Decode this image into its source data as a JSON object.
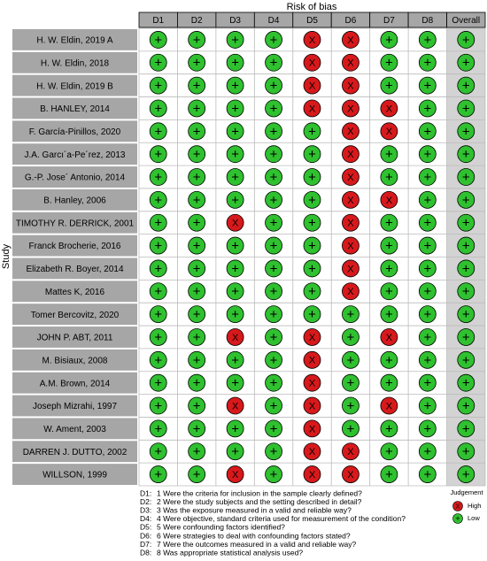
{
  "title": "Risk of bias",
  "y_label": "Study",
  "columns": [
    "D1",
    "D2",
    "D3",
    "D4",
    "D5",
    "D6",
    "D7",
    "D8",
    "Overall"
  ],
  "rows": [
    {
      "study": "H. W. Eldin, 2019 A",
      "judgements": [
        "+",
        "+",
        "+",
        "+",
        "X",
        "X",
        "+",
        "+",
        "+"
      ]
    },
    {
      "study": "H. W. Eldin, 2018",
      "judgements": [
        "+",
        "+",
        "+",
        "+",
        "X",
        "X",
        "+",
        "+",
        "+"
      ]
    },
    {
      "study": "H. W. Eldin, 2019 B",
      "judgements": [
        "+",
        "+",
        "+",
        "+",
        "X",
        "X",
        "+",
        "+",
        "+"
      ]
    },
    {
      "study": "B. HANLEY, 2014",
      "judgements": [
        "+",
        "+",
        "+",
        "+",
        "X",
        "X",
        "X",
        "+",
        "+"
      ]
    },
    {
      "study": "F. García-Pinillos, 2020",
      "judgements": [
        "+",
        "+",
        "+",
        "+",
        "+",
        "X",
        "X",
        "+",
        "+"
      ]
    },
    {
      "study": "J.A. Garcı´a-Pe´rez, 2013",
      "judgements": [
        "+",
        "+",
        "+",
        "+",
        "+",
        "X",
        "+",
        "+",
        "+"
      ]
    },
    {
      "study": "G.-P. Jose´ Antonio, 2014",
      "judgements": [
        "+",
        "+",
        "+",
        "+",
        "+",
        "X",
        "+",
        "+",
        "+"
      ]
    },
    {
      "study": "B. Hanley, 2006",
      "judgements": [
        "+",
        "+",
        "+",
        "+",
        "+",
        "X",
        "X",
        "+",
        "+"
      ]
    },
    {
      "study": "TIMOTHY R. DERRICK, 2001",
      "judgements": [
        "+",
        "+",
        "X",
        "+",
        "+",
        "X",
        "+",
        "+",
        "+"
      ]
    },
    {
      "study": "Franck Brocherie, 2016",
      "judgements": [
        "+",
        "+",
        "+",
        "+",
        "+",
        "X",
        "+",
        "+",
        "+"
      ]
    },
    {
      "study": "Elizabeth R. Boyer, 2014",
      "judgements": [
        "+",
        "+",
        "+",
        "+",
        "+",
        "X",
        "+",
        "+",
        "+"
      ]
    },
    {
      "study": "Mattes K, 2016",
      "judgements": [
        "+",
        "+",
        "+",
        "+",
        "+",
        "X",
        "+",
        "+",
        "+"
      ]
    },
    {
      "study": "Tomer Bercovitz, 2020",
      "judgements": [
        "+",
        "+",
        "+",
        "+",
        "+",
        "+",
        "+",
        "+",
        "+"
      ]
    },
    {
      "study": "JOHN P. ABT, 2011",
      "judgements": [
        "+",
        "+",
        "X",
        "+",
        "X",
        "+",
        "X",
        "+",
        "+"
      ]
    },
    {
      "study": "M. Bisiaux, 2008",
      "judgements": [
        "+",
        "+",
        "+",
        "+",
        "X",
        "+",
        "+",
        "+",
        "+"
      ]
    },
    {
      "study": "A.M. Brown, 2014",
      "judgements": [
        "+",
        "+",
        "+",
        "+",
        "X",
        "+",
        "+",
        "+",
        "+"
      ]
    },
    {
      "study": "Joseph Mizrahi, 1997",
      "judgements": [
        "+",
        "+",
        "X",
        "+",
        "X",
        "+",
        "X",
        "+",
        "+"
      ]
    },
    {
      "study": "W. Ament, 2003",
      "judgements": [
        "+",
        "+",
        "+",
        "+",
        "X",
        "+",
        "+",
        "+",
        "+"
      ]
    },
    {
      "study": "DARREN J. DUTTO, 2002",
      "judgements": [
        "+",
        "+",
        "+",
        "+",
        "X",
        "X",
        "+",
        "+",
        "+"
      ]
    },
    {
      "study": "WILLSON, 1999",
      "judgements": [
        "+",
        "+",
        "X",
        "+",
        "X",
        "X",
        "+",
        "+",
        "+"
      ]
    }
  ],
  "footnotes": [
    {
      "label": "D1:",
      "text": "1  Were the criteria for inclusion in the sample clearly defined?"
    },
    {
      "label": "D2:",
      "text": "2  Were the study subjects and the setting described in detail?"
    },
    {
      "label": "D3:",
      "text": "3  Was the exposure measured in a valid and reliable way?"
    },
    {
      "label": "D4:",
      "text": "4  Were objective, standard criteria used for measurement of the condition?"
    },
    {
      "label": "D5:",
      "text": "5  Were confounding factors identified?"
    },
    {
      "label": "D6:",
      "text": "6  Were strategies to deal with confounding factors stated?"
    },
    {
      "label": "D7:",
      "text": "7  Were the outcomes measured in a valid and reliable way?"
    },
    {
      "label": "D8:",
      "text": "8  Was appropriate statistical analysis used?"
    }
  ],
  "legend": {
    "title": "Judgement",
    "items": [
      {
        "symbol": "X",
        "label": "High",
        "color": "#d7191c"
      },
      {
        "symbol": "+",
        "label": "Low",
        "color": "#2fc12f"
      }
    ]
  }
}
